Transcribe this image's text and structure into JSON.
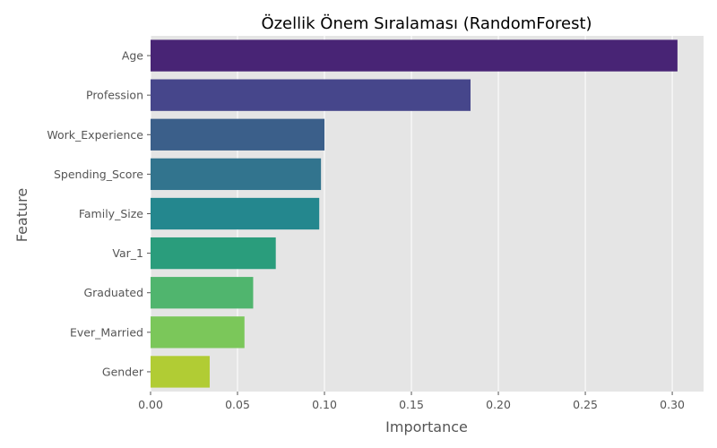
{
  "chart_data": {
    "type": "bar",
    "orientation": "horizontal",
    "title": "Özellik Önem Sıralaması (RandomForest)",
    "xlabel": "Importance",
    "ylabel": "Feature",
    "categories": [
      "Age",
      "Profession",
      "Work_Experience",
      "Spending_Score",
      "Family_Size",
      "Var_1",
      "Graduated",
      "Ever_Married",
      "Gender"
    ],
    "values": [
      0.303,
      0.184,
      0.1,
      0.098,
      0.097,
      0.072,
      0.059,
      0.054,
      0.034
    ],
    "colors": [
      "#482475",
      "#46468b",
      "#3b5f8a",
      "#32748e",
      "#24878e",
      "#2a9d7c",
      "#50b56e",
      "#7bc75a",
      "#b1cc34"
    ],
    "xlim": [
      0,
      0.318
    ],
    "xticks": [
      0.0,
      0.05,
      0.1,
      0.15,
      0.2,
      0.25,
      0.3
    ],
    "xtick_labels": [
      "0.00",
      "0.05",
      "0.10",
      "0.15",
      "0.20",
      "0.25",
      "0.30"
    ],
    "grid": true,
    "background": "#e5e5e5",
    "grid_color": "#ffffff"
  }
}
